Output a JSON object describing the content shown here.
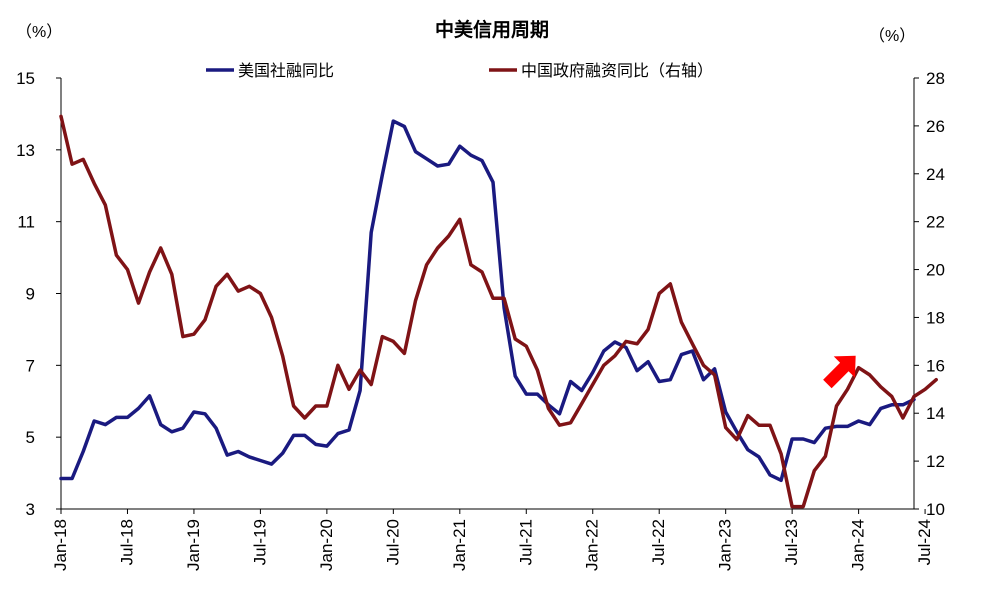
{
  "chart_data": {
    "type": "line",
    "title": "中美信用周期",
    "left_unit": "（%）",
    "right_unit": "（%）",
    "y_left": {
      "min": 3,
      "max": 15,
      "ticks": [
        "3",
        "5",
        "7",
        "9",
        "11",
        "13",
        "15"
      ]
    },
    "y_right": {
      "min": 10,
      "max": 28,
      "ticks": [
        "10",
        "12",
        "14",
        "16",
        "18",
        "20",
        "22",
        "24",
        "26",
        "28"
      ]
    },
    "x_ticks": [
      {
        "label": "Jan-18",
        "index": 0
      },
      {
        "label": "Jul-18",
        "index": 6
      },
      {
        "label": "Jan-19",
        "index": 12
      },
      {
        "label": "Jul-19",
        "index": 18
      },
      {
        "label": "Jan-20",
        "index": 24
      },
      {
        "label": "Jul-20",
        "index": 30
      },
      {
        "label": "Jan-21",
        "index": 36
      },
      {
        "label": "Jul-21",
        "index": 42
      },
      {
        "label": "Jan-22",
        "index": 48
      },
      {
        "label": "Jul-22",
        "index": 54
      },
      {
        "label": "Jan-23",
        "index": 60
      },
      {
        "label": "Jul-23",
        "index": 66
      },
      {
        "label": "Jan-24",
        "index": 72
      },
      {
        "label": "Jul-24",
        "index": 78
      }
    ],
    "series": [
      {
        "name": "美国社融同比",
        "axis": "left",
        "color": "#1a1a80",
        "values": [
          3.85,
          3.85,
          4.6,
          5.45,
          5.35,
          5.55,
          5.55,
          5.8,
          6.15,
          5.35,
          5.15,
          5.25,
          5.7,
          5.65,
          5.25,
          4.5,
          4.6,
          4.45,
          4.35,
          4.25,
          4.55,
          5.05,
          5.05,
          4.8,
          4.75,
          5.1,
          5.2,
          6.3,
          10.7,
          12.3,
          13.8,
          13.65,
          12.95,
          12.75,
          12.55,
          12.6,
          13.1,
          12.85,
          12.7,
          12.1,
          8.6,
          6.7,
          6.2,
          6.2,
          5.9,
          5.65,
          6.55,
          6.3,
          6.8,
          7.4,
          7.65,
          7.5,
          6.85,
          7.1,
          6.55,
          6.6,
          7.3,
          7.4,
          6.6,
          6.9,
          5.7,
          5.15,
          4.65,
          4.45,
          3.95,
          3.8,
          4.95,
          4.95,
          4.85,
          5.25,
          5.3,
          5.3,
          5.45,
          5.35,
          5.8,
          5.9,
          5.9,
          6.05
        ]
      },
      {
        "name": "中国政府融资同比（右轴）",
        "axis": "right",
        "color": "#7f1316",
        "values": [
          26.4,
          24.4,
          24.6,
          23.6,
          22.7,
          20.6,
          20.0,
          18.6,
          19.9,
          20.9,
          19.8,
          17.2,
          17.3,
          17.9,
          19.3,
          19.8,
          19.1,
          19.3,
          19.0,
          18.0,
          16.4,
          14.3,
          13.8,
          14.3,
          14.3,
          16.0,
          15.0,
          15.8,
          15.2,
          17.2,
          17.0,
          16.5,
          18.7,
          20.2,
          20.9,
          21.4,
          22.1,
          20.2,
          19.9,
          18.8,
          18.8,
          17.1,
          16.8,
          15.8,
          14.2,
          13.5,
          13.6,
          14.4,
          15.2,
          16.0,
          16.4,
          17.0,
          16.9,
          17.5,
          19.0,
          19.4,
          17.8,
          16.9,
          16.0,
          15.6,
          13.4,
          12.9,
          13.9,
          13.5,
          13.5,
          12.3,
          10.1,
          10.1,
          11.6,
          12.2,
          14.3,
          15.0,
          15.9,
          15.6,
          15.1,
          14.7,
          13.8,
          14.7,
          15.0,
          15.4
        ]
      }
    ],
    "annotations": [
      {
        "type": "arrow",
        "color": "#ff0000",
        "direction": "up-right",
        "near_index": 69
      }
    ]
  }
}
